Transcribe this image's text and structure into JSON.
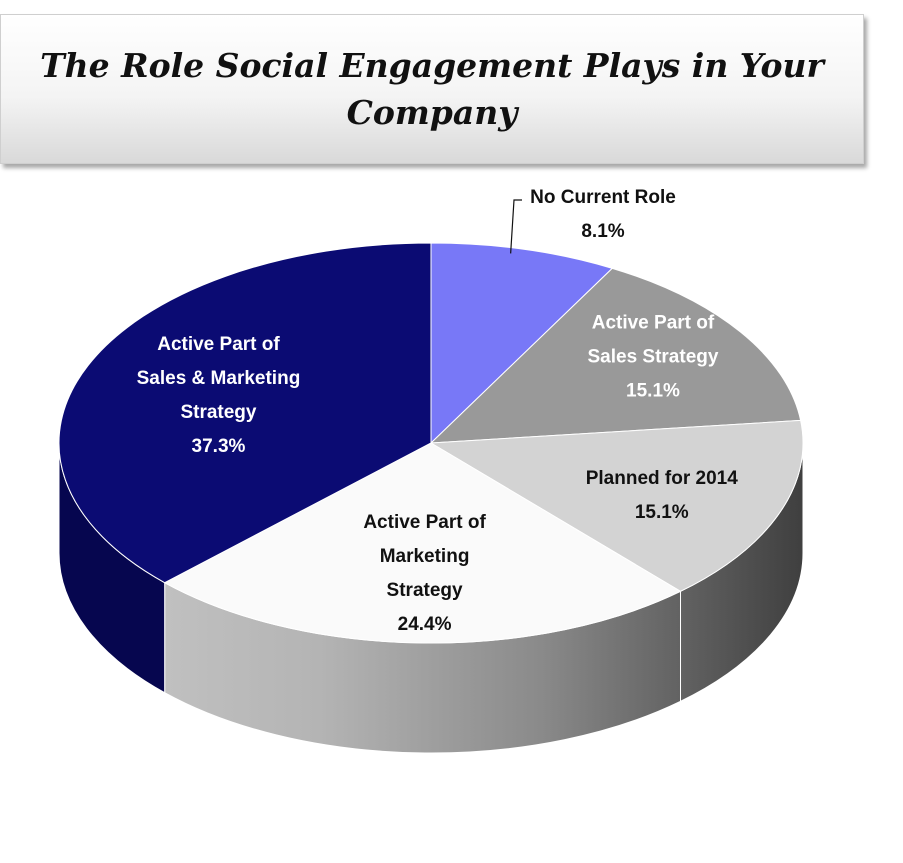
{
  "chart_data": {
    "type": "pie",
    "title": "The Role Social Engagement Plays in Your Company",
    "slices": [
      {
        "label_lines": [
          "No Current Role"
        ],
        "value": 8.1,
        "value_label": "8.1%",
        "color": "#7878f7"
      },
      {
        "label_lines": [
          "Active Part of",
          "Sales Strategy"
        ],
        "value": 15.1,
        "value_label": "15.1%",
        "color": "#999999"
      },
      {
        "label_lines": [
          "Planned for 2014"
        ],
        "value": 15.1,
        "value_label": "15.1%",
        "color": "#d3d3d3"
      },
      {
        "label_lines": [
          "Active Part of",
          "Marketing",
          "Strategy"
        ],
        "value": 24.4,
        "value_label": "24.4%",
        "color": "#fafafa"
      },
      {
        "label_lines": [
          "Active Part of",
          "Sales & Marketing",
          "Strategy"
        ],
        "value": 37.3,
        "value_label": "37.3%",
        "color": "#0b0b73"
      }
    ],
    "style": "3d-pie",
    "legend": "none"
  }
}
